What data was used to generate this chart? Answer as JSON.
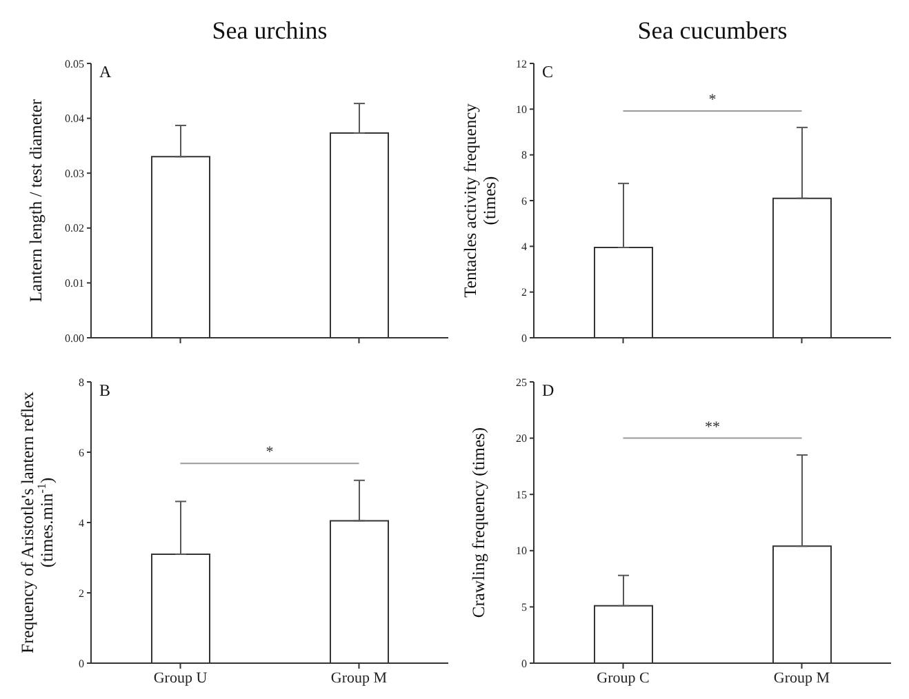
{
  "chart_data": [
    {
      "type": "bar",
      "title": "Sea urchins",
      "ylabel": "Lantern length / test diameter",
      "categories": [
        null,
        null
      ],
      "values": [
        0.033,
        0.0373
      ],
      "errors": [
        [
          0.033,
          0.0387
        ],
        [
          0.0373,
          0.0427
        ]
      ],
      "color": "#ffffff",
      "ylim": [
        0,
        0.05
      ],
      "yticks": [
        {
          "value": 0,
          "label": "0.00"
        },
        0.01,
        0.02,
        0.03,
        0.04,
        0.05
      ],
      "annotations": [
        "A"
      ]
    },
    {
      "type": "bar",
      "title": "Sea cucumbers",
      "ylabel": "Tentacles activity frequency (times)",
      "categories": [
        null,
        null
      ],
      "values": [
        3.95,
        6.1
      ],
      "errors": [
        [
          3.95,
          6.75
        ],
        [
          6.1,
          9.2
        ]
      ],
      "color": "#ffffff",
      "ylim": [
        0,
        12
      ],
      "yticks": [
        0,
        2,
        4,
        6,
        8,
        10,
        12
      ],
      "annotations": [
        "C",
        "*"
      ]
    },
    {
      "type": "bar",
      "ylabel": "Frequency of Aristotle's lantern reflex (times.min$^{-1}$)",
      "categories": [
        "Group U",
        "Group M"
      ],
      "values": [
        3.1,
        4.05
      ],
      "errors": [
        [
          3.1,
          4.6
        ],
        [
          4.05,
          5.2
        ]
      ],
      "color": "#ffffff",
      "ylim": [
        0,
        8
      ],
      "yticks": [
        0,
        2,
        4,
        6,
        8
      ],
      "annotations": [
        "B",
        "*"
      ]
    },
    {
      "type": "bar",
      "ylabel": "Crawling frequency (times)",
      "categories": [
        "Group C",
        "Group M"
      ],
      "values": [
        5.1,
        10.4
      ],
      "errors": [
        [
          5.1,
          7.8
        ],
        [
          10.4,
          18.5
        ]
      ],
      "color": "#ffffff",
      "ylim": [
        0,
        25
      ],
      "yticks": [
        0,
        5,
        10,
        15,
        20,
        25
      ],
      "annotations": [
        "D",
        "**"
      ]
    }
  ]
}
